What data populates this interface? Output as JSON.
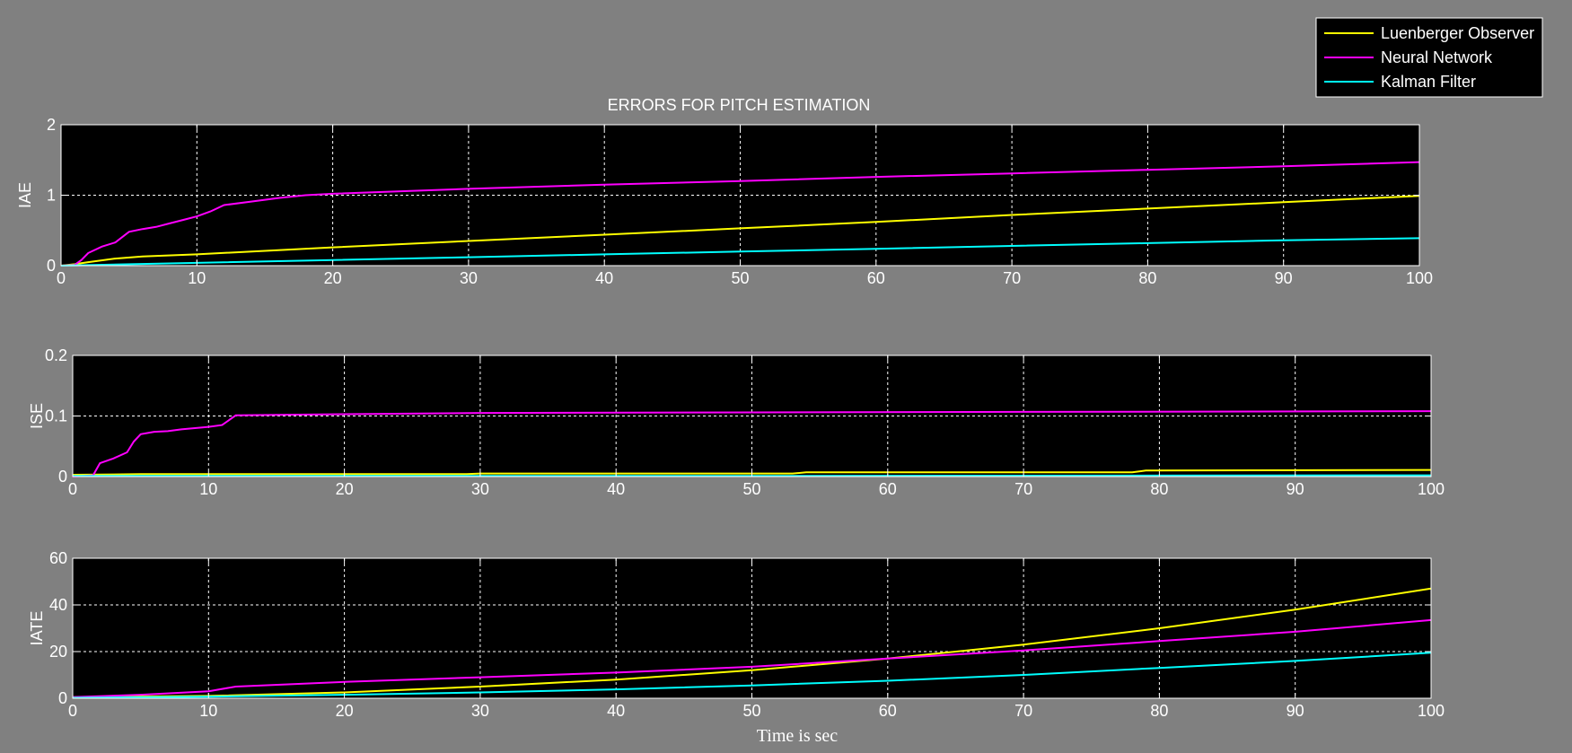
{
  "title": "ERRORS FOR PITCH ESTIMATION",
  "xlabel": "Time is sec",
  "colors": {
    "background": "#808080",
    "axes_bg": "#000000",
    "axes_fg": "#ffffff"
  },
  "legend": {
    "placement": "top-right",
    "entries": [
      {
        "label": "Luenberger Observer",
        "color": "#ffff00"
      },
      {
        "label": "Neural Network",
        "color": "#ff00ff"
      },
      {
        "label": "Kalman Filter",
        "color": "#00ffff"
      }
    ]
  },
  "chart_data": [
    {
      "type": "line",
      "ylabel": "IAE",
      "title": "ERRORS FOR PITCH ESTIMATION",
      "xlim": [
        0,
        100
      ],
      "ylim": [
        0,
        2
      ],
      "xticks": [
        0,
        10,
        20,
        30,
        40,
        50,
        60,
        70,
        80,
        90,
        100
      ],
      "yticks": [
        0,
        1,
        2
      ],
      "grid": true,
      "series": [
        {
          "name": "Luenberger Observer",
          "color": "#ffff00",
          "x": [
            0,
            1,
            2,
            4,
            6,
            10,
            20,
            30,
            40,
            50,
            60,
            70,
            80,
            90,
            100
          ],
          "y": [
            0,
            0.02,
            0.05,
            0.1,
            0.13,
            0.16,
            0.26,
            0.35,
            0.44,
            0.53,
            0.62,
            0.72,
            0.81,
            0.9,
            0.99
          ]
        },
        {
          "name": "Neural Network",
          "color": "#ff00ff",
          "x": [
            0,
            1,
            1.5,
            2,
            3,
            4,
            5,
            6,
            7,
            8,
            9,
            10,
            11,
            12,
            14,
            16,
            18,
            20,
            30,
            40,
            50,
            60,
            70,
            80,
            90,
            100
          ],
          "y": [
            0,
            0.01,
            0.08,
            0.18,
            0.27,
            0.33,
            0.48,
            0.52,
            0.55,
            0.6,
            0.65,
            0.7,
            0.77,
            0.86,
            0.91,
            0.96,
            1.0,
            1.02,
            1.09,
            1.15,
            1.2,
            1.26,
            1.31,
            1.36,
            1.41,
            1.47
          ]
        },
        {
          "name": "Kalman Filter",
          "color": "#00ffff",
          "x": [
            0,
            10,
            20,
            30,
            40,
            50,
            60,
            70,
            80,
            90,
            100
          ],
          "y": [
            0,
            0.04,
            0.08,
            0.12,
            0.16,
            0.2,
            0.24,
            0.28,
            0.32,
            0.36,
            0.39
          ]
        }
      ]
    },
    {
      "type": "line",
      "ylabel": "ISE",
      "xlim": [
        0,
        100
      ],
      "ylim": [
        0,
        0.2
      ],
      "xticks": [
        0,
        10,
        20,
        30,
        40,
        50,
        60,
        70,
        80,
        90,
        100
      ],
      "yticks": [
        0,
        0.1,
        0.2
      ],
      "grid": true,
      "series": [
        {
          "name": "Luenberger Observer",
          "color": "#ffff00",
          "x": [
            0,
            5,
            29,
            30,
            53,
            54,
            78,
            79,
            100
          ],
          "y": [
            0.003,
            0.004,
            0.004,
            0.005,
            0.005,
            0.007,
            0.007,
            0.01,
            0.011
          ]
        },
        {
          "name": "Neural Network",
          "color": "#ff00ff",
          "x": [
            0,
            1.5,
            2,
            3,
            4,
            4.5,
            5,
            6,
            7,
            8,
            9,
            10,
            11,
            12,
            20,
            30,
            50,
            100
          ],
          "y": [
            0,
            0.002,
            0.022,
            0.03,
            0.04,
            0.058,
            0.07,
            0.074,
            0.075,
            0.078,
            0.08,
            0.082,
            0.085,
            0.101,
            0.103,
            0.105,
            0.106,
            0.108
          ]
        },
        {
          "name": "Kalman Filter",
          "color": "#00ffff",
          "x": [
            0,
            50,
            100
          ],
          "y": [
            0.001,
            0.001,
            0.002
          ]
        }
      ]
    },
    {
      "type": "line",
      "ylabel": "IATE",
      "xlim": [
        0,
        100
      ],
      "ylim": [
        0,
        60
      ],
      "xticks": [
        0,
        10,
        20,
        30,
        40,
        50,
        60,
        70,
        80,
        90,
        100
      ],
      "yticks": [
        0,
        20,
        40,
        60
      ],
      "grid": true,
      "series": [
        {
          "name": "Luenberger Observer",
          "color": "#ffff00",
          "x": [
            0,
            10,
            20,
            30,
            40,
            50,
            60,
            70,
            80,
            90,
            100
          ],
          "y": [
            0.5,
            1,
            2.5,
            5,
            8,
            12,
            17,
            23,
            30,
            38,
            47
          ]
        },
        {
          "name": "Neural Network",
          "color": "#ff00ff",
          "x": [
            0,
            5,
            10,
            12,
            20,
            30,
            40,
            50,
            60,
            70,
            80,
            90,
            100
          ],
          "y": [
            0.5,
            1.5,
            3,
            5,
            7,
            9,
            11,
            13.5,
            17,
            20.5,
            24.5,
            28.5,
            33.5
          ]
        },
        {
          "name": "Kalman Filter",
          "color": "#00ffff",
          "x": [
            0,
            10,
            20,
            30,
            40,
            50,
            60,
            70,
            80,
            90,
            100
          ],
          "y": [
            0.2,
            0.7,
            1.5,
            2.5,
            3.8,
            5.5,
            7.5,
            10,
            13,
            16,
            19.5
          ]
        }
      ]
    }
  ]
}
